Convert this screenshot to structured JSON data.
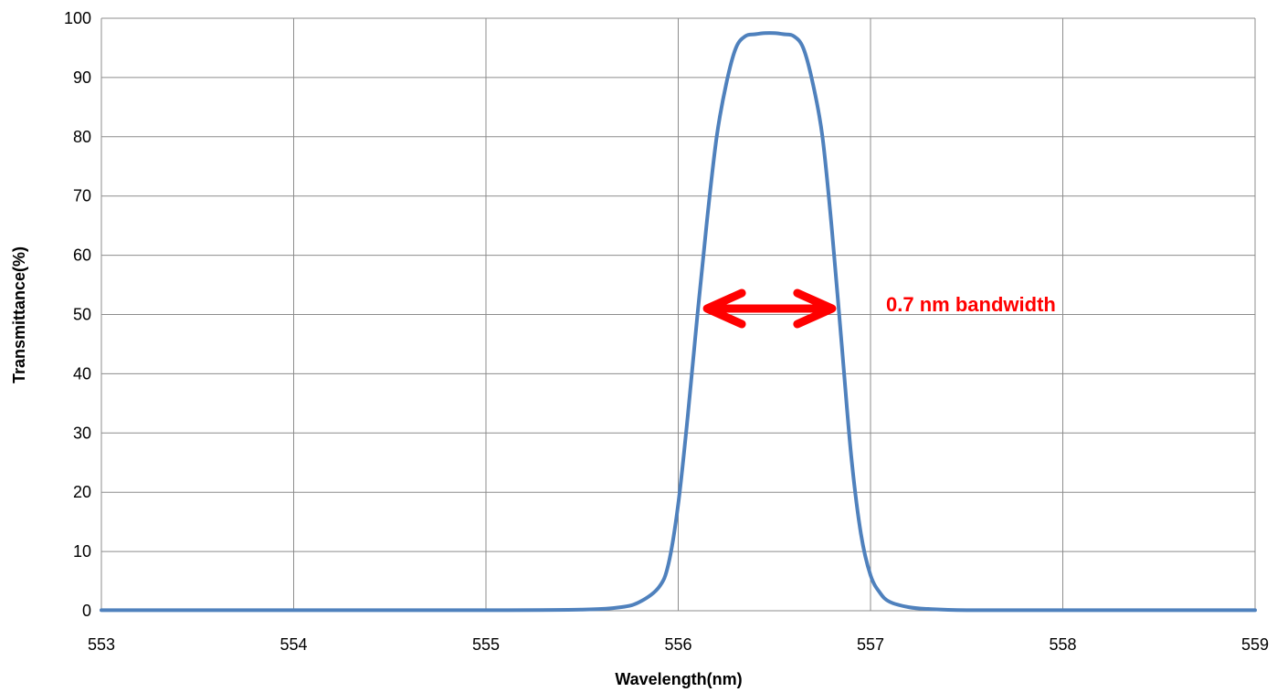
{
  "chart_data": {
    "type": "line",
    "title": "",
    "xlabel": "Wavelength(nm)",
    "ylabel": "Transmittance(%)",
    "xlim": [
      553,
      559
    ],
    "ylim": [
      0,
      100
    ],
    "x_ticks": [
      553,
      554,
      555,
      556,
      557,
      558,
      559
    ],
    "y_ticks": [
      0,
      10,
      20,
      30,
      40,
      50,
      60,
      70,
      80,
      90,
      100
    ],
    "grid": true,
    "legend": "none",
    "series": [
      {
        "color": "#4f81bd",
        "x": [
          553.0,
          554.0,
          555.0,
          555.5,
          555.7,
          555.8,
          555.9,
          555.95,
          556.0,
          556.05,
          556.1,
          556.15,
          556.2,
          556.25,
          556.3,
          556.35,
          556.4,
          556.45,
          556.5,
          556.55,
          556.6,
          556.65,
          556.7,
          556.75,
          556.8,
          556.85,
          556.9,
          556.95,
          557.0,
          557.05,
          557.1,
          557.2,
          557.3,
          557.5,
          558.0,
          559.0
        ],
        "y": [
          0.1,
          0.1,
          0.1,
          0.2,
          0.6,
          1.5,
          4.0,
          8.0,
          18.0,
          33.0,
          50.0,
          66.0,
          80.0,
          89.0,
          95.0,
          97.0,
          97.3,
          97.5,
          97.5,
          97.3,
          97.0,
          95.0,
          89.0,
          80.0,
          64.0,
          45.0,
          26.0,
          13.0,
          6.0,
          3.0,
          1.5,
          0.6,
          0.3,
          0.1,
          0.1,
          0.1
        ]
      }
    ],
    "annotation": {
      "text": "0.7 nm bandwidth",
      "color": "#ff0000",
      "arrow_from_x": 556.15,
      "arrow_to_x": 556.8,
      "arrow_y": 51,
      "text_x": 557.1,
      "text_y": 51
    }
  }
}
